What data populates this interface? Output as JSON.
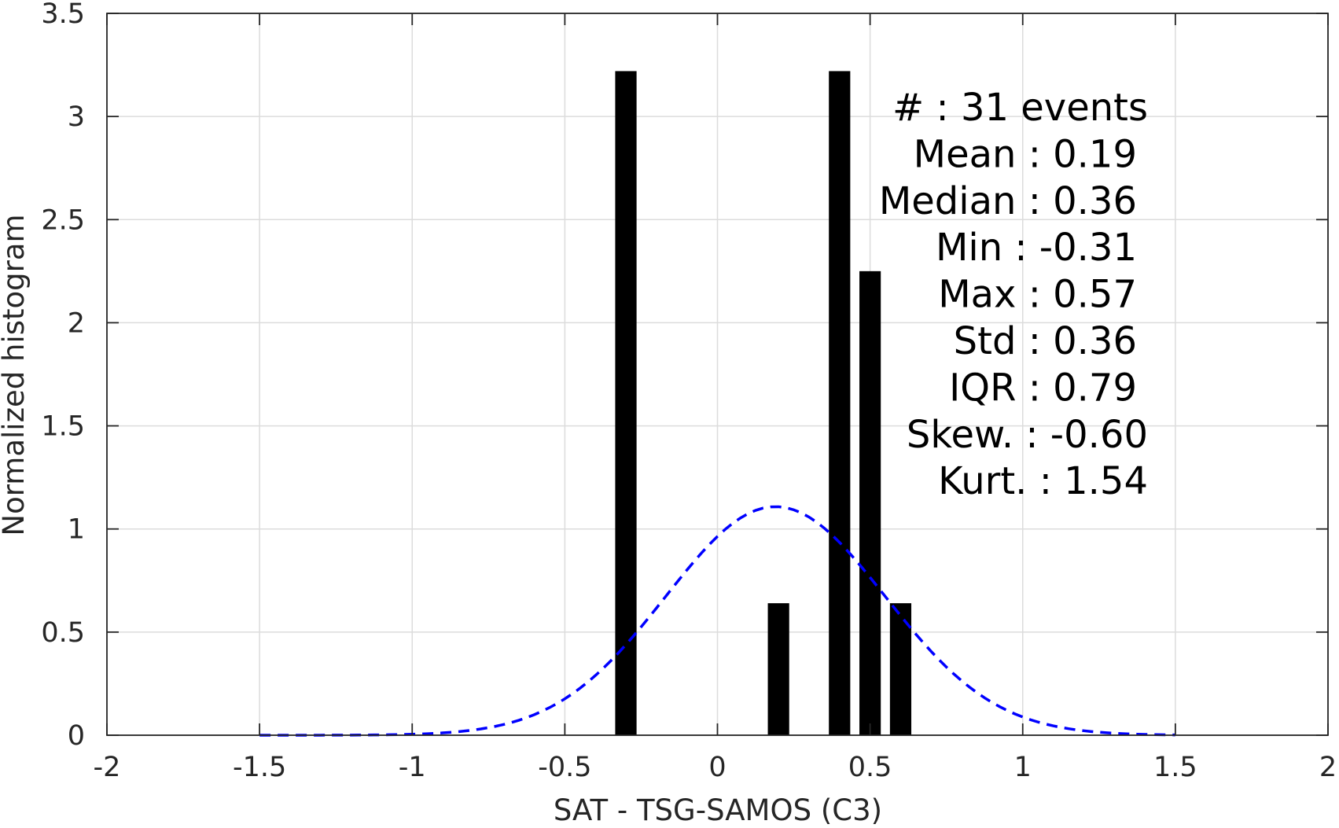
{
  "chart_data": {
    "type": "bar",
    "xlabel": "SAT - TSG-SAMOS (C3)",
    "ylabel": "Normalized histogram",
    "xlim": [
      -2,
      2
    ],
    "ylim": [
      0,
      3.5
    ],
    "x_ticks": [
      "-2",
      "-1.5",
      "-1",
      "-0.5",
      "0",
      "0.5",
      "1",
      "1.5",
      "2"
    ],
    "x_tick_values": [
      -2,
      -1.5,
      -1,
      -0.5,
      0,
      0.5,
      1,
      1.5,
      2
    ],
    "y_ticks": [
      "0",
      "0.5",
      "1",
      "1.5",
      "2",
      "2.5",
      "3",
      "3.5"
    ],
    "y_tick_values": [
      0,
      0.5,
      1,
      1.5,
      2,
      2.5,
      3,
      3.5
    ],
    "grid": true,
    "bar_color": "#000000",
    "bars": [
      {
        "x": -0.3,
        "value": 3.22
      },
      {
        "x": 0.2,
        "value": 0.64
      },
      {
        "x": 0.4,
        "value": 3.22
      },
      {
        "x": 0.5,
        "value": 2.25
      },
      {
        "x": 0.6,
        "value": 0.64
      }
    ],
    "bar_width": 0.07,
    "fit_curve": {
      "color": "#0000ff",
      "style": "dashed",
      "x_range": [
        -1.5,
        1.5
      ],
      "mean": 0.19,
      "std": 0.36
    },
    "stats": [
      {
        "label": "#  : 31 events",
        "anchor": "end",
        "col": "outer"
      },
      {
        "label": "Mean : 0.19",
        "anchor": "end",
        "col": "inner"
      },
      {
        "label": "Median : 0.36",
        "anchor": "end",
        "col": "inner"
      },
      {
        "label": "Min : -0.31",
        "anchor": "end",
        "col": "inner"
      },
      {
        "label": "Max : 0.57",
        "anchor": "end",
        "col": "inner"
      },
      {
        "label": "Std : 0.36",
        "anchor": "end",
        "col": "inner"
      },
      {
        "label": "IQR : 0.79",
        "anchor": "end",
        "col": "inner"
      },
      {
        "label": "Skew. : -0.60",
        "anchor": "end",
        "col": "outer"
      },
      {
        "label": "Kurt. : 1.54",
        "anchor": "end",
        "col": "outer"
      }
    ]
  }
}
